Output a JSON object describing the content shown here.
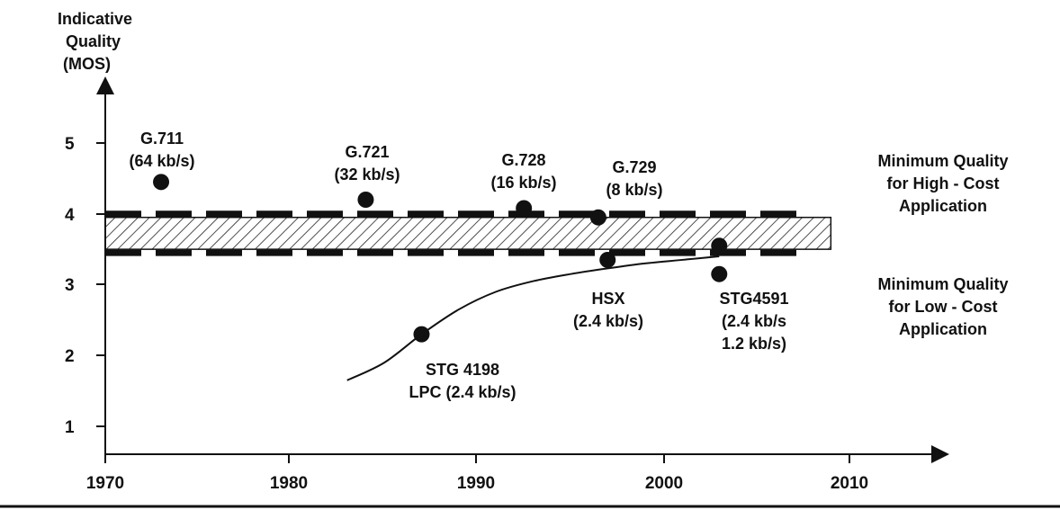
{
  "chart_data": {
    "type": "scatter",
    "ylabel_lines": [
      "Indicative",
      "Quality",
      "(MOS)"
    ],
    "xlabel": "",
    "xlim": [
      1970,
      2010
    ],
    "ylim": [
      1,
      5
    ],
    "x_ticks": [
      "1970",
      "1980",
      "1990",
      "2000",
      "2010"
    ],
    "y_ticks": [
      "1",
      "2",
      "3",
      "4",
      "5"
    ],
    "grid": false,
    "points": [
      {
        "x": 1973,
        "y": 4.45,
        "label_lines": [
          "G.711",
          "(64 kb/s)"
        ]
      },
      {
        "x": 1984,
        "y": 4.2,
        "label_lines": [
          "G.721",
          "(32 kb/s)"
        ]
      },
      {
        "x": 1992.5,
        "y": 4.08,
        "label_lines": [
          "G.728",
          "(16 kb/s)"
        ]
      },
      {
        "x": 1996.5,
        "y": 3.95,
        "label_lines": [
          "G.729",
          "(8 kb/s)"
        ]
      },
      {
        "x": 1987,
        "y": 2.3,
        "label_lines": [
          "STG 4198",
          "LPC (2.4 kb/s)"
        ]
      },
      {
        "x": 1997,
        "y": 3.35,
        "label_lines": [
          "HSX",
          "(2.4 kb/s)"
        ]
      },
      {
        "x": 2003,
        "y": 3.55,
        "label_lines": []
      },
      {
        "x": 2003,
        "y": 3.15,
        "label_lines": [
          "STG4591",
          "(2.4 kb/s",
          "1.2 kb/s)"
        ]
      }
    ],
    "trend_curve": [
      [
        1983,
        1.65
      ],
      [
        1985,
        1.9
      ],
      [
        1987,
        2.3
      ],
      [
        1989,
        2.65
      ],
      [
        1991,
        2.9
      ],
      [
        1993,
        3.05
      ],
      [
        1995,
        3.15
      ],
      [
        1997,
        3.23
      ],
      [
        1999,
        3.3
      ],
      [
        2001,
        3.35
      ],
      [
        2003,
        3.4
      ]
    ],
    "thresholds": {
      "high_cost": {
        "y": 4.0,
        "label_lines": [
          "Minimum Quality",
          "for High - Cost",
          "Application"
        ]
      },
      "low_cost": {
        "y": 3.45,
        "label_lines": [
          "Minimum Quality",
          "for Low - Cost",
          "Application"
        ]
      },
      "band": {
        "y_low": 3.5,
        "y_high": 3.95,
        "x_end": 2009
      }
    },
    "colors": {
      "ink": "#111111",
      "background": "#ffffff"
    }
  }
}
